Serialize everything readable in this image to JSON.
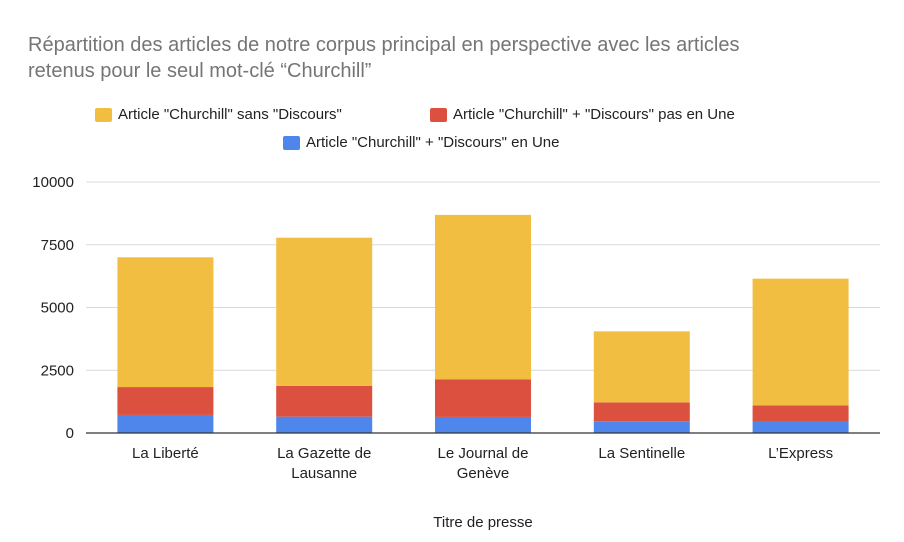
{
  "chart_data": {
    "type": "bar",
    "stacked": true,
    "title_lines": [
      "Répartition des articles de notre corpus principal en perspective avec les articles",
      "retenus pour le seul mot-clé “Churchill”"
    ],
    "xlabel": "Titre de presse",
    "ylabel": "",
    "ylim": [
      0,
      10000
    ],
    "yticks": [
      "0",
      "2500",
      "5000",
      "7500",
      "10000"
    ],
    "grid": true,
    "legend_position": "top",
    "categories": [
      [
        "La Liberté"
      ],
      [
        "La Gazette de",
        "Lausanne"
      ],
      [
        "Le Journal de",
        "Genève"
      ],
      [
        "La Sentinelle"
      ],
      [
        "L’Express"
      ]
    ],
    "series": [
      {
        "name": "Article \"Churchill\" + \"Discours\" en Une",
        "color": "#4f86ec",
        "values": [
          720,
          650,
          640,
          470,
          460
        ]
      },
      {
        "name": "Article \"Churchill\" + \"Discours\" pas en Une",
        "color": "#dc5040",
        "values": [
          1110,
          1230,
          1500,
          750,
          640
        ]
      },
      {
        "name": "Article \"Churchill\" sans \"Discours\"",
        "color": "#f2be42",
        "values": [
          5170,
          5900,
          6550,
          2830,
          5050
        ]
      }
    ]
  }
}
